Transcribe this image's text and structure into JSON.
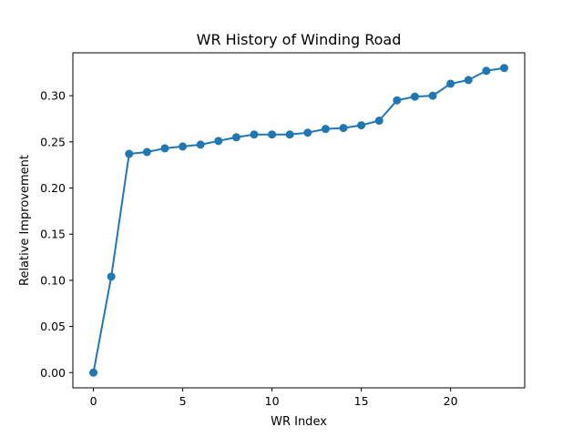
{
  "chart_data": {
    "type": "line",
    "title": "WR History of Winding Road",
    "xlabel": "WR Index",
    "ylabel": "Relative Improvement",
    "xlim": [
      -1.15,
      24.15
    ],
    "ylim": [
      -0.0165,
      0.3465
    ],
    "xticks": [
      0,
      5,
      10,
      15,
      20
    ],
    "xtick_labels": [
      "0",
      "5",
      "10",
      "15",
      "20"
    ],
    "yticks": [
      0.0,
      0.05,
      0.1,
      0.15,
      0.2,
      0.25,
      0.3
    ],
    "ytick_labels": [
      "0.00",
      "0.05",
      "0.10",
      "0.15",
      "0.20",
      "0.25",
      "0.30"
    ],
    "grid": false,
    "color": "#1f77b4",
    "marker": "circle",
    "series": [
      {
        "x": [
          0,
          1,
          2,
          3,
          4,
          5,
          6,
          7,
          8,
          9,
          10,
          11,
          12,
          13,
          14,
          15,
          16,
          17,
          18,
          19,
          20,
          21,
          22,
          23
        ],
        "values": [
          0.0,
          0.104,
          0.237,
          0.239,
          0.243,
          0.245,
          0.247,
          0.251,
          0.255,
          0.258,
          0.258,
          0.258,
          0.26,
          0.264,
          0.265,
          0.268,
          0.273,
          0.295,
          0.299,
          0.3,
          0.313,
          0.317,
          0.327,
          0.33
        ]
      }
    ]
  }
}
